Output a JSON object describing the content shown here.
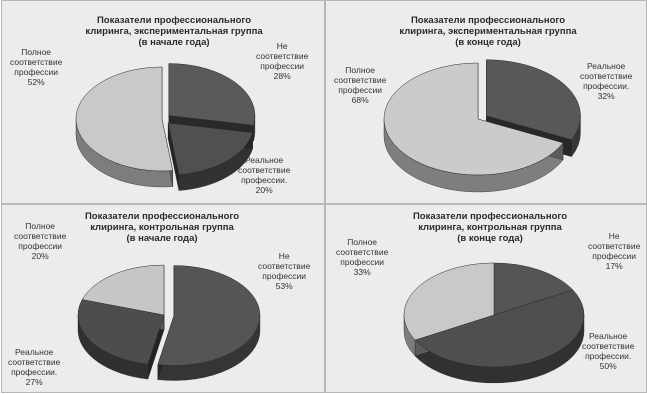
{
  "chart_data": [
    {
      "type": "pie",
      "title": [
        "Показатели профессионального",
        "клиринга, экспериментальная группа",
        "(в начале года)"
      ],
      "slices": [
        {
          "label": [
            "Не",
            "соответствие",
            "профессии"
          ],
          "value": 28,
          "value_text": "28%",
          "color": "#5a5a5a",
          "exploded": true
        },
        {
          "label": [
            "Реальное",
            "соответствие",
            "профессии."
          ],
          "value": 20,
          "value_text": "20%",
          "color": "#505050",
          "exploded": true
        },
        {
          "label": [
            "Полное",
            "соответствие",
            "профессии"
          ],
          "value": 52,
          "value_text": "52%",
          "color": "#c9c9c9",
          "exploded": false
        }
      ]
    },
    {
      "type": "pie",
      "title": [
        "Показатели профессионального",
        "клиринга, экспериментальная группа",
        "(в конце года)"
      ],
      "slices": [
        {
          "label": [
            "Реальное",
            "соответствие",
            "профессии."
          ],
          "value": 32,
          "value_text": "32%",
          "color": "#585858",
          "exploded": true
        },
        {
          "label": [
            "Полное",
            "соответствие",
            "профессии"
          ],
          "value": 68,
          "value_text": "68%",
          "color": "#cbcbcb",
          "exploded": false
        }
      ]
    },
    {
      "type": "pie",
      "title": [
        "Показатели профессионального",
        "клиринга, контрольная группа",
        "(в начале года)"
      ],
      "slices": [
        {
          "label": [
            "Не",
            "соответствие",
            "профессии"
          ],
          "value": 53,
          "value_text": "53%",
          "color": "#555555",
          "exploded": true
        },
        {
          "label": [
            "Реальное",
            "соответствие",
            "профессии."
          ],
          "value": 27,
          "value_text": "27%",
          "color": "#4d4d4d",
          "exploded": false
        },
        {
          "label": [
            "Полное",
            "соответствие",
            "профессии"
          ],
          "value": 20,
          "value_text": "20%",
          "color": "#c6c6c6",
          "exploded": false
        }
      ]
    },
    {
      "type": "pie",
      "title": [
        "Показатели профессионального",
        "клиринга, контрольная группа",
        "(в конце года)"
      ],
      "slices": [
        {
          "label": [
            "Не",
            "соответствие",
            "профессии"
          ],
          "value": 17,
          "value_text": "17%",
          "color": "#555555",
          "exploded": false
        },
        {
          "label": [
            "Реальное",
            "соответствие",
            "профессии."
          ],
          "value": 50,
          "value_text": "50%",
          "color": "#4f4f4f",
          "exploded": false
        },
        {
          "label": [
            "Полное",
            "соответствие",
            "профессии"
          ],
          "value": 33,
          "value_text": "33%",
          "color": "#c9c9c9",
          "exploded": false
        }
      ]
    }
  ]
}
